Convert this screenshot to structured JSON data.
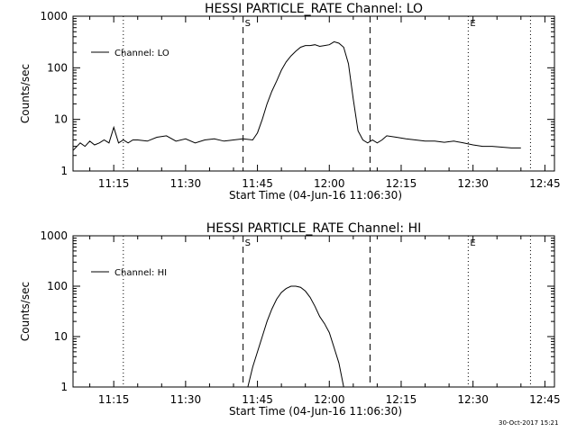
{
  "footer": {
    "timestamp": "30-Oct-2017 15:21"
  },
  "chart_data": [
    {
      "type": "line",
      "title": "HESSI PARTICLE_RATE Channel: LO",
      "xlabel": "Start Time (04-Jun-16 11:06:30)",
      "ylabel": "Counts/sec",
      "yscale": "log",
      "ylim": [
        1,
        1000
      ],
      "xlim": [
        "11:06:30",
        "12:47:00"
      ],
      "x_tick_labels": [
        "11:15",
        "11:30",
        "11:45",
        "12:00",
        "12:15",
        "12:30",
        "12:45"
      ],
      "y_tick_labels": [
        "1",
        "10",
        "100",
        "1000"
      ],
      "legend": {
        "position": "top-left",
        "entries": [
          "Channel: LO"
        ]
      },
      "series": [
        {
          "name": "Channel: LO",
          "x": [
            "11:06:30",
            "11:08:00",
            "11:09:00",
            "11:10:00",
            "11:11:00",
            "11:12:00",
            "11:13:00",
            "11:14:00",
            "11:15:00",
            "11:16:00",
            "11:17:00",
            "11:18:00",
            "11:19:00",
            "11:20:00",
            "11:22:00",
            "11:24:00",
            "11:26:00",
            "11:28:00",
            "11:30:00",
            "11:32:00",
            "11:34:00",
            "11:36:00",
            "11:38:00",
            "11:40:00",
            "11:42:00",
            "11:44:00",
            "11:45:00",
            "11:46:00",
            "11:47:00",
            "11:48:00",
            "11:49:00",
            "11:50:00",
            "11:51:00",
            "11:52:00",
            "11:53:00",
            "11:54:00",
            "11:55:00",
            "11:56:00",
            "11:57:00",
            "11:58:00",
            "11:59:00",
            "12:00:00",
            "12:01:00",
            "12:02:00",
            "12:03:00",
            "12:04:00",
            "12:05:00",
            "12:06:00",
            "12:07:00",
            "12:08:00",
            "12:09:00",
            "12:10:00",
            "12:11:00",
            "12:12:00",
            "12:14:00",
            "12:16:00",
            "12:18:00",
            "12:20:00",
            "12:22:00",
            "12:24:00",
            "12:26:00",
            "12:28:00",
            "12:30:00",
            "12:32:00",
            "12:34:00",
            "12:36:00",
            "12:38:00",
            "12:40:00"
          ],
          "y": [
            2.5,
            3.5,
            3,
            3.8,
            3.2,
            3.5,
            4,
            3.5,
            7,
            3.5,
            4,
            3.5,
            4,
            4,
            3.8,
            4.5,
            4.8,
            3.8,
            4.2,
            3.5,
            4,
            4.2,
            3.8,
            4,
            4.2,
            4,
            5.5,
            10,
            20,
            35,
            55,
            90,
            130,
            170,
            210,
            250,
            270,
            270,
            280,
            260,
            270,
            280,
            320,
            300,
            250,
            120,
            25,
            6,
            4,
            3.5,
            4,
            3.5,
            4,
            4.8,
            4.5,
            4.2,
            4,
            3.8,
            3.8,
            3.6,
            3.8,
            3.5,
            3.2,
            3,
            3,
            2.9,
            2.8,
            2.8
          ]
        }
      ],
      "markers": [
        {
          "time": "11:17:00",
          "style": "dotted"
        },
        {
          "time": "11:42:00",
          "style": "dashed",
          "label": "S"
        },
        {
          "time": "12:08:30",
          "style": "dashed"
        },
        {
          "time": "12:29:00",
          "style": "dotted",
          "label": "E"
        },
        {
          "time": "12:42:00",
          "style": "dotted"
        }
      ]
    },
    {
      "type": "line",
      "title": "HESSI PARTICLE_RATE Channel: HI",
      "xlabel": "Start Time (04-Jun-16 11:06:30)",
      "ylabel": "Counts/sec",
      "yscale": "log",
      "ylim": [
        1,
        1000
      ],
      "xlim": [
        "11:06:30",
        "12:47:00"
      ],
      "x_tick_labels": [
        "11:15",
        "11:30",
        "11:45",
        "12:00",
        "12:15",
        "12:30",
        "12:45"
      ],
      "y_tick_labels": [
        "1",
        "10",
        "100",
        "1000"
      ],
      "legend": {
        "position": "top-left",
        "entries": [
          "Channel: HI"
        ]
      },
      "series": [
        {
          "name": "Channel: HI",
          "x": [
            "11:43:00",
            "11:44:00",
            "11:45:00",
            "11:46:00",
            "11:47:00",
            "11:48:00",
            "11:49:00",
            "11:50:00",
            "11:51:00",
            "11:52:00",
            "11:53:00",
            "11:54:00",
            "11:55:00",
            "11:56:00",
            "11:57:00",
            "11:58:00",
            "11:59:00",
            "12:00:00",
            "12:01:00",
            "12:02:00",
            "12:03:00"
          ],
          "y": [
            1,
            2.5,
            5,
            10,
            20,
            35,
            55,
            75,
            90,
            100,
            100,
            95,
            80,
            60,
            40,
            25,
            18,
            12,
            6,
            3,
            1
          ]
        }
      ],
      "markers": [
        {
          "time": "11:17:00",
          "style": "dotted"
        },
        {
          "time": "11:42:00",
          "style": "dashed",
          "label": "S"
        },
        {
          "time": "12:08:30",
          "style": "dashed"
        },
        {
          "time": "12:29:00",
          "style": "dotted",
          "label": "E"
        },
        {
          "time": "12:42:00",
          "style": "dotted"
        }
      ]
    }
  ]
}
